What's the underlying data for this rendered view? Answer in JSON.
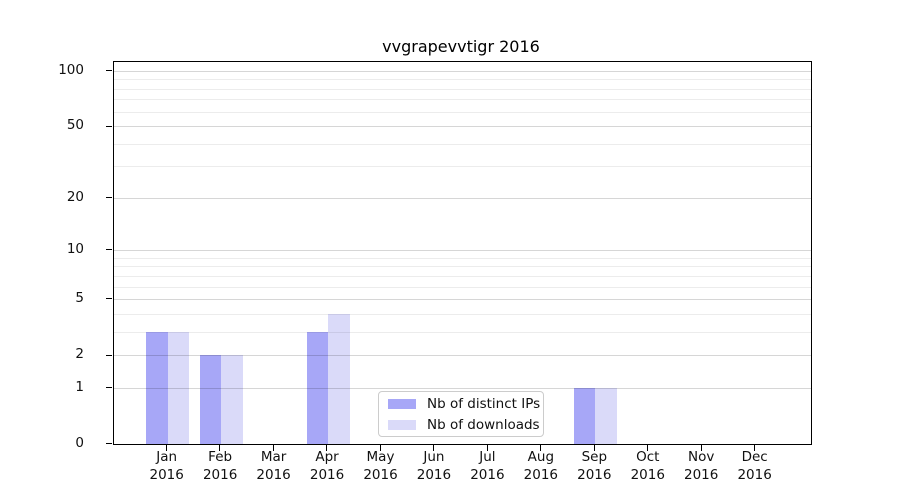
{
  "title": "vvgrapevvtigr 2016",
  "colors": {
    "distinct_ips": "#a7a7f7",
    "downloads": "#dadaf9",
    "grid_major": "rgba(0,0,0,0.16)",
    "grid_minor": "rgba(0,0,0,0.075)",
    "spine": "#000000",
    "legend_border": "#cccccc"
  },
  "chart_data": {
    "type": "bar",
    "title": "vvgrapevvtigr 2016",
    "xlabel": "",
    "ylabel": "",
    "y_scale": "log10(1+y)",
    "ylim": [
      0,
      112
    ],
    "grid": true,
    "legend_position": "lower center-left inside plot",
    "months": [
      "Jan",
      "Feb",
      "Mar",
      "Apr",
      "May",
      "Jun",
      "Jul",
      "Aug",
      "Sep",
      "Oct",
      "Nov",
      "Dec"
    ],
    "year": "2016",
    "categories": [
      "Jan 2016",
      "Feb 2016",
      "Mar 2016",
      "Apr 2016",
      "May 2016",
      "Jun 2016",
      "Jul 2016",
      "Aug 2016",
      "Sep 2016",
      "Oct 2016",
      "Nov 2016",
      "Dec 2016"
    ],
    "series": [
      {
        "name": "Nb of distinct IPs",
        "color": "#a7a7f7",
        "values": [
          3,
          2,
          0,
          3,
          0,
          0,
          0,
          0,
          1,
          0,
          0,
          0
        ]
      },
      {
        "name": "Nb of downloads",
        "color": "#dadaf9",
        "values": [
          3,
          2,
          0,
          4,
          0,
          0,
          0,
          0,
          1,
          0,
          0,
          0
        ]
      }
    ],
    "y_major_ticks": [
      0,
      1,
      2,
      5,
      10,
      20,
      50,
      100
    ],
    "y_minor_gridlines": [
      3,
      4,
      6,
      7,
      8,
      9,
      30,
      40,
      60,
      70,
      80,
      90
    ]
  }
}
